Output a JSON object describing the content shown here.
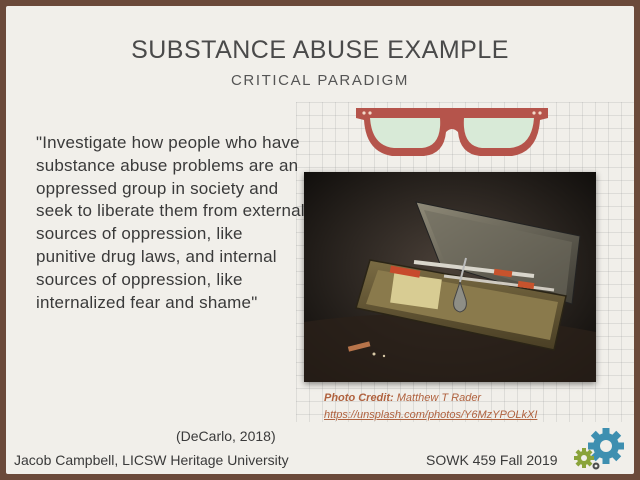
{
  "slide": {
    "title": "SUBSTANCE ABUSE EXAMPLE",
    "subtitle": "CRITICAL PARADIGM",
    "quote": "\"Investigate how people who have substance abuse problems are an oppressed group in society and seek to liberate them from external sources of oppression, like punitive drug laws, and internal sources of oppression, like internalized fear and shame\"",
    "citation": "(DeCarlo, 2018)"
  },
  "photo_credit": {
    "label": "Photo Credit:",
    "name": "Matthew T Rader",
    "url": "https://unsplash.com/photos/Y6MzYPOLkXI"
  },
  "footer": {
    "left": "Jacob Campbell, LICSW Heritage University",
    "right": "SOWK 459 Fall 2019"
  },
  "colors": {
    "glasses_frame": "#b5544b",
    "glasses_lens": "#d8ead7",
    "credit_text": "#b0623f",
    "gear_large": "#3e8fb0",
    "gear_small": "#8aa33a"
  },
  "icons": [
    "glasses-icon",
    "gear-icon"
  ]
}
